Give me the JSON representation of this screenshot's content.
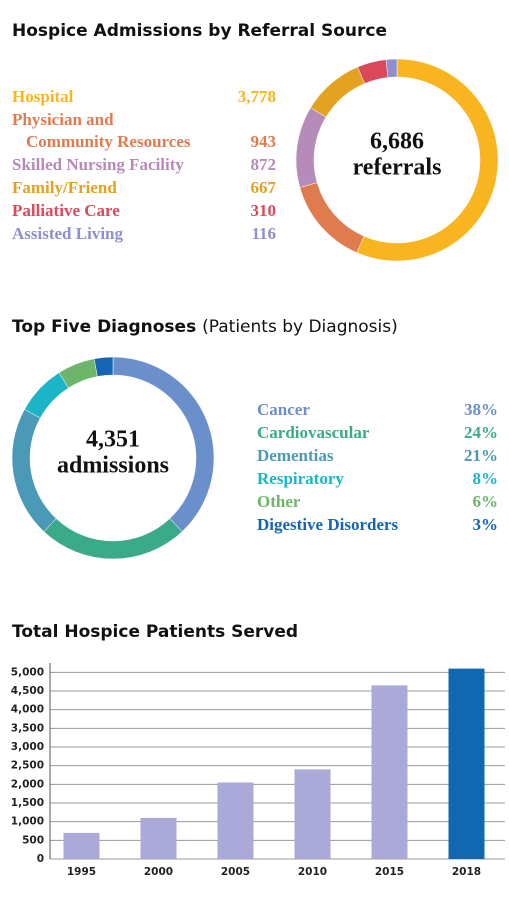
{
  "chart_data": [
    {
      "type": "donut",
      "title": "Hospice Admissions by Referral Source",
      "total": {
        "value": 6686,
        "label": "6,686"
      },
      "total_caption": "referrals",
      "categories": [
        "Hospital",
        "Physician and Community Resources",
        "Skilled Nursing Facility",
        "Family/Friend",
        "Palliative Care",
        "Assisted Living"
      ],
      "values": [
        3778,
        943,
        872,
        667,
        310,
        116
      ],
      "value_labels": [
        "3,778",
        "943",
        "872",
        "667",
        "310",
        "116"
      ],
      "colors": [
        "#f8b51f",
        "#e07b4f",
        "#b68bb9",
        "#e3a21f",
        "#d9495b",
        "#8d8fd0"
      ]
    },
    {
      "type": "donut",
      "title": "Top Five Diagnoses",
      "subtitle": "(Patients by Diagnosis)",
      "total": {
        "value": 4351,
        "label": "4,351"
      },
      "total_caption": "admissions",
      "categories": [
        "Cancer",
        "Cardiovascular",
        "Dementias",
        "Respiratory",
        "Other",
        "Digestive Disorders"
      ],
      "values": [
        38,
        24,
        21,
        8,
        6,
        3
      ],
      "value_labels": [
        "38%",
        "24%",
        "21%",
        "8%",
        "6%",
        "3%"
      ],
      "colors": [
        "#6a8fcb",
        "#3aaa89",
        "#4a99b7",
        "#1cb4c7",
        "#6db56a",
        "#1565b4"
      ]
    },
    {
      "type": "bar",
      "title": "Total Hospice Patients Served",
      "categories": [
        "1995",
        "2000",
        "2005",
        "2010",
        "2015",
        "2018"
      ],
      "values": [
        700,
        1100,
        2050,
        2400,
        4650,
        5100
      ],
      "colors": [
        "#aaa9d7",
        "#aaa9d7",
        "#aaa9d7",
        "#aaa9d7",
        "#aaa9d7",
        "#1068b3"
      ],
      "ylim": [
        0,
        5250
      ],
      "yticks": [
        0,
        500,
        {
          "value": 1000,
          "label": "1,000"
        },
        {
          "value": 1500,
          "label": "1,500"
        },
        {
          "value": 2000,
          "label": "2,000"
        },
        {
          "value": 2500,
          "label": "2,500"
        },
        {
          "value": 3000,
          "label": "3,000"
        },
        {
          "value": 3500,
          "label": "3,500"
        },
        {
          "value": 4000,
          "label": "4,000"
        },
        {
          "value": 4500,
          "label": "4,500"
        },
        {
          "value": 5000,
          "label": "5,000"
        }
      ],
      "grid": true
    }
  ]
}
